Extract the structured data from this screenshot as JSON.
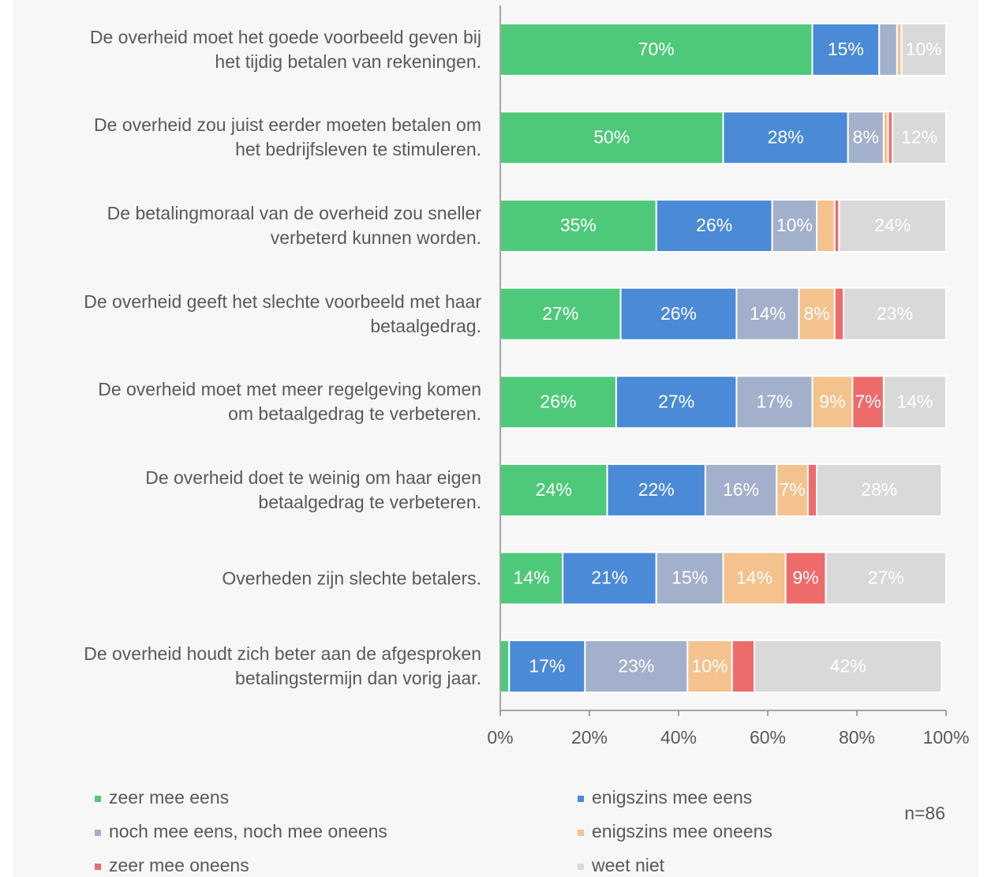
{
  "chart_data": {
    "type": "stacked_bar_horizontal",
    "categories": [
      "De overheid moet het goede voorbeeld geven bij\nhet tijdig betalen van rekeningen.",
      "De overheid zou juist eerder moeten betalen om\nhet bedrijfsleven te stimuleren.",
      "De betalingmoraal van de overheid zou sneller\nverbeterd kunnen worden.",
      "De overheid geeft het slechte voorbeeld met haar\nbetaalgedrag.",
      "De overheid moet met meer regelgeving komen\nom betaalgedrag te verbeteren.",
      "De overheid doet te weinig om haar eigen\nbetaalgedrag te verbeteren.",
      "Overheden zijn slechte betalers.",
      "De overheid houdt zich beter aan de afgesproken\nbetalingstermijn dan vorig jaar."
    ],
    "series": [
      {
        "name": "zeer mee eens",
        "color": "#4ec97a",
        "values": [
          70,
          50,
          35,
          27,
          26,
          24,
          14,
          2
        ],
        "value_labels": [
          "70%",
          "50%",
          "35%",
          "27%",
          "26%",
          "24%",
          "14%",
          null
        ]
      },
      {
        "name": "enigszins mee eens",
        "color": "#4a8ad6",
        "values": [
          15,
          28,
          26,
          26,
          27,
          22,
          21,
          17
        ],
        "value_labels": [
          "15%",
          "28%",
          "26%",
          "26%",
          "27%",
          "22%",
          "21%",
          "17%"
        ]
      },
      {
        "name": "noch mee eens, noch mee oneens",
        "color": "#a3b0cb",
        "values": [
          4,
          8,
          10,
          14,
          17,
          16,
          15,
          23
        ],
        "value_labels": [
          null,
          "8%",
          "10%",
          "14%",
          "17%",
          "16%",
          "15%",
          "23%"
        ]
      },
      {
        "name": "enigszins mee oneens",
        "color": "#f3c28d",
        "values": [
          1,
          1,
          4,
          8,
          9,
          7,
          14,
          10
        ],
        "value_labels": [
          null,
          null,
          null,
          "8%",
          "9%",
          "7%",
          "14%",
          "10%"
        ]
      },
      {
        "name": "zeer mee oneens",
        "color": "#ee6b6b",
        "values": [
          0,
          1,
          1,
          2,
          7,
          2,
          9,
          5
        ],
        "value_labels": [
          null,
          null,
          null,
          null,
          "7%",
          null,
          "9%",
          null
        ]
      },
      {
        "name": "weet niet",
        "color": "#d9d9d9",
        "values": [
          10,
          12,
          24,
          23,
          14,
          28,
          27,
          42
        ],
        "value_labels": [
          "10%",
          "12%",
          "24%",
          "23%",
          "14%",
          "28%",
          "27%",
          "42%"
        ]
      }
    ],
    "xlim": [
      0,
      100
    ],
    "xticks": [
      {
        "value": 0,
        "label": "0%"
      },
      {
        "value": 20,
        "label": "20%"
      },
      {
        "value": 40,
        "label": "40%"
      },
      {
        "value": 60,
        "label": "60%"
      },
      {
        "value": 80,
        "label": "80%"
      },
      {
        "value": 100,
        "label": "100%"
      }
    ],
    "annotation": "n=86",
    "legend": "bottom"
  }
}
